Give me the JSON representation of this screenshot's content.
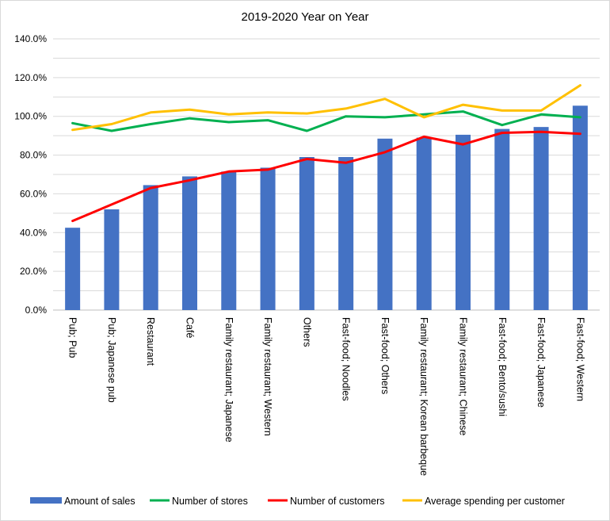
{
  "chart_data": {
    "type": "bar",
    "title": "2019-2020 Year on Year",
    "xlabel": "",
    "ylabel": "",
    "ylim": [
      0,
      140
    ],
    "y_ticks": [
      "0.0%",
      "20.0%",
      "40.0%",
      "60.0%",
      "80.0%",
      "100.0%",
      "120.0%",
      "140.0%"
    ],
    "grid": true,
    "legend_position": "bottom",
    "categories": [
      "Pub; Pub",
      "Pub; Japanese pub",
      "Restaurant",
      "Café",
      "Family restaurant; Japanese",
      "Family restaurant; Western",
      "Others",
      "Fast-food; Noodles",
      "Fast-food; Others",
      "Family restaurant; Korean barbeque",
      "Family restaurant; Chinese",
      "Fast-food; Bento/sushi",
      "Fast-food; Japanese",
      "Fast-food; Western"
    ],
    "series": [
      {
        "name": "Amount of sales",
        "kind": "bar",
        "color": "#4472c4",
        "values": [
          42.5,
          52.0,
          64.5,
          69.0,
          71.5,
          73.5,
          79.0,
          79.0,
          88.5,
          89.0,
          90.5,
          93.5,
          94.5,
          105.5
        ]
      },
      {
        "name": "Number of stores",
        "kind": "line",
        "color": "#00b050",
        "values": [
          96.5,
          92.5,
          96.0,
          99.0,
          97.0,
          98.0,
          92.5,
          100.0,
          99.5,
          101.0,
          102.5,
          95.5,
          101.0,
          99.5
        ]
      },
      {
        "name": "Number of customers",
        "kind": "line",
        "color": "#ff0000",
        "values": [
          46.0,
          54.5,
          63.0,
          67.0,
          71.5,
          72.5,
          78.0,
          76.0,
          81.5,
          89.5,
          85.5,
          91.5,
          92.0,
          91.0
        ]
      },
      {
        "name": "Average spending per customer",
        "kind": "line",
        "color": "#ffc000",
        "values": [
          93.0,
          96.0,
          102.0,
          103.5,
          101.0,
          102.0,
          101.5,
          104.0,
          109.0,
          99.5,
          106.0,
          103.0,
          103.0,
          116.0
        ]
      }
    ]
  }
}
